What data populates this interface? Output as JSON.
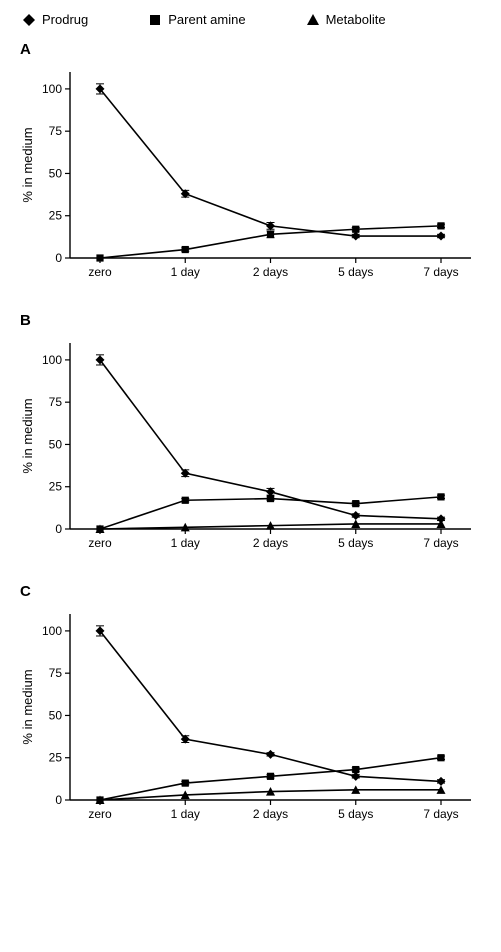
{
  "legend": {
    "items": [
      {
        "label": "Prodrug",
        "marker": "diamond"
      },
      {
        "label": "Parent amine",
        "marker": "square"
      },
      {
        "label": "Metabolite",
        "marker": "triangle"
      }
    ]
  },
  "chart_common": {
    "x_categories": [
      "zero",
      "1 day",
      "2 days",
      "5 days",
      "7 days"
    ],
    "ylabel": "% in medium",
    "ylim": [
      0,
      110
    ],
    "yticks": [
      0,
      25,
      50,
      75,
      100
    ],
    "x_tick_fontsize": 12,
    "y_tick_fontsize": 12,
    "label_fontsize": 13,
    "axis_color": "#000000",
    "tick_color": "#000000",
    "background_color": "#ffffff",
    "line_color": "#000000",
    "marker_fill": "#000000",
    "line_width": 1.6,
    "marker_size": 9,
    "error_cap": 4
  },
  "panels": [
    {
      "id": "A",
      "series": [
        {
          "marker": "diamond",
          "y": [
            100,
            38,
            19,
            13,
            13
          ],
          "err": [
            3,
            2,
            2,
            1,
            1
          ]
        },
        {
          "marker": "square",
          "y": [
            0,
            5,
            14,
            17,
            19
          ],
          "err": [
            0,
            1,
            2,
            1,
            1
          ]
        }
      ]
    },
    {
      "id": "B",
      "series": [
        {
          "marker": "diamond",
          "y": [
            100,
            33,
            22,
            8,
            6
          ],
          "err": [
            3,
            2,
            2,
            1,
            1
          ]
        },
        {
          "marker": "square",
          "y": [
            0,
            17,
            18,
            15,
            19
          ],
          "err": [
            0,
            1,
            1,
            1,
            1
          ]
        },
        {
          "marker": "triangle",
          "y": [
            0,
            1,
            2,
            3,
            3
          ],
          "err": [
            0,
            0,
            0,
            0,
            0
          ]
        }
      ]
    },
    {
      "id": "C",
      "series": [
        {
          "marker": "diamond",
          "y": [
            100,
            36,
            27,
            14,
            11
          ],
          "err": [
            3,
            2,
            1,
            1,
            1
          ]
        },
        {
          "marker": "square",
          "y": [
            0,
            10,
            14,
            18,
            25
          ],
          "err": [
            0,
            1,
            1,
            1,
            1
          ]
        },
        {
          "marker": "triangle",
          "y": [
            0,
            3,
            5,
            6,
            6
          ],
          "err": [
            0,
            0,
            0,
            0,
            0
          ]
        }
      ]
    }
  ]
}
